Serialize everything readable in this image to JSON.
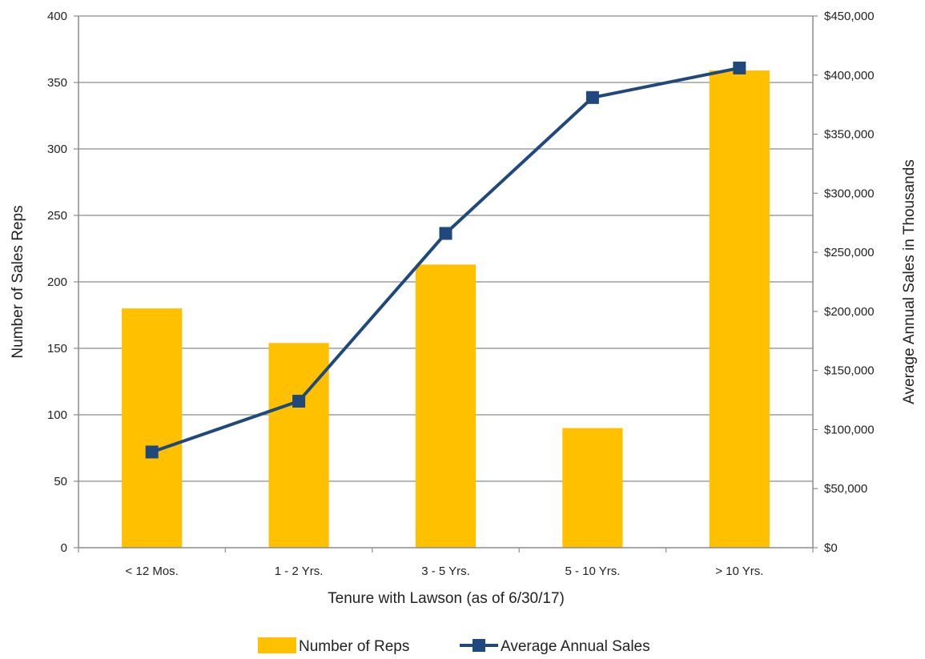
{
  "chart_data": {
    "type": "bar",
    "categories": [
      "< 12 Mos.",
      "1 - 2 Yrs.",
      "3 - 5 Yrs.",
      "5 - 10 Yrs.",
      "> 10 Yrs."
    ],
    "series": [
      {
        "name": "Number of Reps",
        "type": "bar",
        "axis": "left",
        "color": "#FFC000",
        "values": [
          180,
          154,
          213,
          90,
          359
        ]
      },
      {
        "name": "Average Annual Sales",
        "type": "line",
        "axis": "right",
        "color": "#1F497D",
        "values": [
          81000,
          124000,
          266000,
          381000,
          406000
        ]
      }
    ],
    "xlabel": "Tenure with Lawson (as of 6/30/17)",
    "ylabel": "Number of Sales Reps",
    "y2label": "Average Annual Sales in Thousands",
    "ylim": [
      0,
      400
    ],
    "y2lim": [
      0,
      450000
    ],
    "yticks": [
      "0",
      "50",
      "100",
      "150",
      "200",
      "250",
      "300",
      "350",
      "400"
    ],
    "y2ticks": [
      "$0",
      "$50,000",
      "$100,000",
      "$150,000",
      "$200,000",
      "$250,000",
      "$300,000",
      "$350,000",
      "$400,000",
      "$450,000"
    ],
    "grid": true,
    "legend": "bottom"
  }
}
